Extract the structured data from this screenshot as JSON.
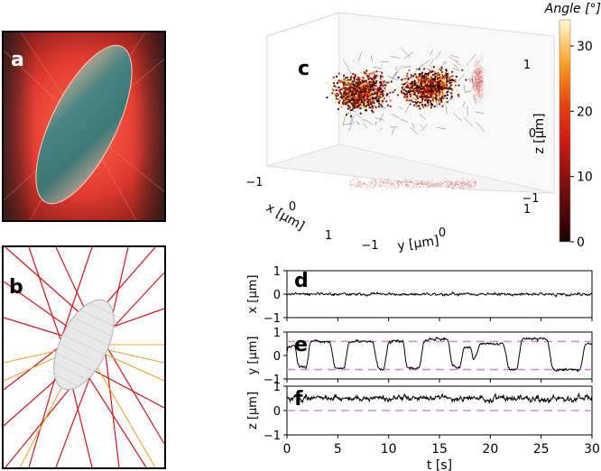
{
  "panels": {
    "a": {
      "label": "a"
    },
    "b": {
      "label": "b"
    },
    "c": {
      "label": "c"
    },
    "d": {
      "label": "d"
    },
    "e": {
      "label": "e"
    },
    "f": {
      "label": "f"
    }
  },
  "colors": {
    "trace": "#000000",
    "dashed": "#d08ad8",
    "ray_red": "#d4141c",
    "ray_orange": "#f0a020",
    "laser_bg": "#e8453a"
  },
  "chart_data": [
    {
      "type": "scatter",
      "panel": "c",
      "title": "",
      "xlabel": "x [μm]",
      "ylabel": "y [μm]",
      "zlabel": "z [μm]",
      "x_ticks": [
        "−1",
        "0",
        "1"
      ],
      "y_ticks": [
        "−1",
        "0",
        "1"
      ],
      "z_ticks": [
        "1",
        "0",
        "−1"
      ],
      "xlim": [
        -1,
        1
      ],
      "ylim": [
        -1,
        1
      ],
      "zlim": [
        -1,
        1
      ],
      "colorbar": {
        "label": "Angle [°]",
        "ticks": [
          "30",
          "20",
          "10",
          "0"
        ],
        "range": [
          0,
          34
        ]
      }
    },
    {
      "type": "line",
      "panel": "d",
      "ylabel": "x [μm]",
      "y_ticks": [
        "1",
        "0",
        "−1"
      ],
      "ylim": [
        -1,
        1
      ],
      "mean_level": 0,
      "noise_amplitude": 0.12,
      "dashed_levels": []
    },
    {
      "type": "line",
      "panel": "e",
      "ylabel": "y [μm]",
      "y_ticks": [
        "1",
        "0",
        "−1"
      ],
      "ylim": [
        -1,
        1
      ],
      "dashed_levels": [
        0.6,
        -0.6
      ],
      "states": [
        {
          "t": 0,
          "y": 0.4
        },
        {
          "t": 0.8,
          "y": 0.4
        },
        {
          "t": 1.0,
          "y": -0.5
        },
        {
          "t": 1.9,
          "y": -0.5
        },
        {
          "t": 2.2,
          "y": 0.6
        },
        {
          "t": 4.2,
          "y": 0.6
        },
        {
          "t": 4.6,
          "y": -0.55
        },
        {
          "t": 5.6,
          "y": -0.55
        },
        {
          "t": 6.0,
          "y": 0.6
        },
        {
          "t": 8.4,
          "y": 0.6
        },
        {
          "t": 8.9,
          "y": -0.6
        },
        {
          "t": 9.5,
          "y": -0.6
        },
        {
          "t": 9.9,
          "y": 0.6
        },
        {
          "t": 11.4,
          "y": 0.6
        },
        {
          "t": 11.7,
          "y": -0.55
        },
        {
          "t": 13.0,
          "y": -0.55
        },
        {
          "t": 13.4,
          "y": 0.7
        },
        {
          "t": 15.8,
          "y": 0.7
        },
        {
          "t": 16.2,
          "y": -0.5
        },
        {
          "t": 17.0,
          "y": -0.5
        },
        {
          "t": 17.3,
          "y": 0.4
        },
        {
          "t": 18.0,
          "y": 0.4
        },
        {
          "t": 18.3,
          "y": -0.3
        },
        {
          "t": 18.9,
          "y": 0.5
        },
        {
          "t": 21.3,
          "y": 0.5
        },
        {
          "t": 21.7,
          "y": -0.6
        },
        {
          "t": 22.6,
          "y": -0.6
        },
        {
          "t": 23.0,
          "y": 0.7
        },
        {
          "t": 25.6,
          "y": 0.7
        },
        {
          "t": 26.0,
          "y": -0.6
        },
        {
          "t": 28.8,
          "y": -0.6
        },
        {
          "t": 29.2,
          "y": 0.5
        },
        {
          "t": 30.0,
          "y": 0.5
        }
      ],
      "noise_amplitude": 0.12
    },
    {
      "type": "line",
      "panel": "f",
      "ylabel": "z [μm]",
      "y_ticks": [
        "1",
        "0",
        "−1"
      ],
      "ylim": [
        -1,
        1
      ],
      "mean_level": 0.5,
      "noise_amplitude": 0.25,
      "dashed_levels": [
        0
      ]
    },
    {
      "type": "axis",
      "panel": "shared-time-axis",
      "xlabel": "t [s]",
      "x_ticks": [
        "0",
        "5",
        "10",
        "15",
        "20",
        "25",
        "30"
      ],
      "xlim": [
        0,
        30
      ]
    }
  ]
}
